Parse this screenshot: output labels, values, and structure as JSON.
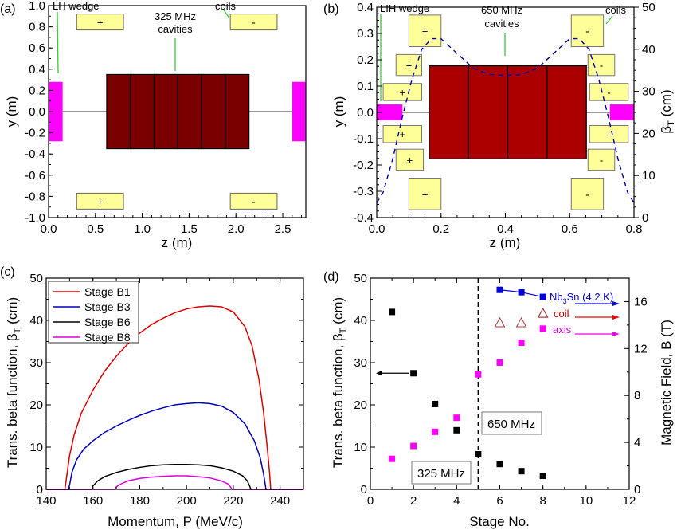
{
  "chart_data": [
    {
      "id": "a",
      "type": "diagram",
      "panel_label": "(a)",
      "xlabel": "z (m)",
      "ylabel": "y (m)",
      "xlim": [
        0,
        2.75
      ],
      "ylim": [
        -1.0,
        1.0
      ],
      "xticks": [
        "0.0",
        "0.5",
        "1.0",
        "1.5",
        "2.0",
        "2.5"
      ],
      "yticks": [
        "1.0",
        "0.8",
        "0.6",
        "0.4",
        "0.2",
        "0.0",
        "-0.2",
        "-0.4",
        "-0.6",
        "-0.8",
        "-1.0"
      ],
      "xtick_values": [
        0,
        0.5,
        1.0,
        1.5,
        2.0,
        2.5
      ],
      "ytick_values": [
        1.0,
        0.8,
        0.6,
        0.4,
        0.2,
        0.0,
        -0.2,
        -0.4,
        -0.6,
        -0.8,
        -1.0
      ],
      "annotations": {
        "wedge": "LH wedge",
        "cavity_line1": "325 MHz",
        "cavity_line2": "cavities",
        "coils": "coils"
      },
      "wedges": [
        {
          "z0": 0.0,
          "z1": 0.15,
          "y0": -0.28,
          "y1": 0.28
        },
        {
          "z0": 2.6,
          "z1": 2.75,
          "y0": -0.28,
          "y1": 0.28
        }
      ],
      "cavities": {
        "z0": 0.62,
        "z1": 2.14,
        "y0": -0.35,
        "y1": 0.35,
        "count": 6
      },
      "coils": [
        {
          "z0": 0.3,
          "z1": 0.8,
          "y0": 0.77,
          "y1": 0.92,
          "sign": "+"
        },
        {
          "z0": 1.94,
          "z1": 2.44,
          "y0": 0.77,
          "y1": 0.92,
          "sign": "-"
        },
        {
          "z0": 0.3,
          "z1": 0.8,
          "y0": -0.92,
          "y1": -0.77,
          "sign": "+"
        },
        {
          "z0": 1.94,
          "z1": 2.44,
          "y0": -0.92,
          "y1": -0.77,
          "sign": "-"
        }
      ],
      "colors": {
        "wedge": "#ff00ff",
        "cavity": "#7a0000",
        "coil": "#ffff99",
        "pointer": "#33cc33"
      }
    },
    {
      "id": "b",
      "type": "diagram+line",
      "panel_label": "(b)",
      "xlabel": "z (m)",
      "ylabel": "y (m)",
      "y2label": "β_T (cm)",
      "xlim": [
        0,
        0.8
      ],
      "ylim": [
        -0.4,
        0.4
      ],
      "y2lim": [
        0,
        50
      ],
      "xticks": [
        "0.0",
        "0.2",
        "0.4",
        "0.6",
        "0.8"
      ],
      "xtick_values": [
        0,
        0.2,
        0.4,
        0.6,
        0.8
      ],
      "yticks": [
        "0.4",
        "0.3",
        "0.2",
        "0.1",
        "0.0",
        "-0.1",
        "-0.2",
        "-0.3",
        "-0.4"
      ],
      "ytick_values": [
        0.4,
        0.3,
        0.2,
        0.1,
        0.0,
        -0.1,
        -0.2,
        -0.3,
        -0.4
      ],
      "y2ticks": [
        "50",
        "40",
        "30",
        "20",
        "10",
        "0"
      ],
      "y2tick_values": [
        50,
        40,
        30,
        20,
        10,
        0
      ],
      "annotations": {
        "wedge": "LIH wedge",
        "cavity_line1": "650 MHz",
        "cavity_line2": "cavities",
        "coils": "coils"
      },
      "wedges": [
        {
          "z0": 0.0,
          "z1": 0.08,
          "y0": -0.03,
          "y1": 0.03
        },
        {
          "z0": 0.725,
          "z1": 0.8,
          "y0": -0.03,
          "y1": 0.03
        }
      ],
      "cavities": {
        "z0": 0.163,
        "z1": 0.652,
        "y0": -0.177,
        "y1": 0.177,
        "count": 4
      },
      "coils": [
        {
          "z0": 0.1,
          "z1": 0.2,
          "y0": 0.25,
          "y1": 0.37,
          "sign": "+"
        },
        {
          "z0": 0.06,
          "z1": 0.14,
          "y0": 0.14,
          "y1": 0.22,
          "sign": "+"
        },
        {
          "z0": 0.02,
          "z1": 0.14,
          "y0": 0.045,
          "y1": 0.11,
          "sign": "+"
        },
        {
          "z0": 0.02,
          "z1": 0.14,
          "y0": -0.115,
          "y1": -0.05,
          "sign": "+"
        },
        {
          "z0": 0.06,
          "z1": 0.145,
          "y0": -0.22,
          "y1": -0.14,
          "sign": "+"
        },
        {
          "z0": 0.1,
          "z1": 0.2,
          "y0": -0.37,
          "y1": -0.25,
          "sign": "+"
        },
        {
          "z0": 0.605,
          "z1": 0.705,
          "y0": 0.25,
          "y1": 0.37,
          "sign": "-"
        },
        {
          "z0": 0.657,
          "z1": 0.74,
          "y0": 0.14,
          "y1": 0.22,
          "sign": "-"
        },
        {
          "z0": 0.662,
          "z1": 0.782,
          "y0": 0.045,
          "y1": 0.11,
          "sign": "-"
        },
        {
          "z0": 0.662,
          "z1": 0.782,
          "y0": -0.115,
          "y1": -0.05,
          "sign": "-"
        },
        {
          "z0": 0.657,
          "z1": 0.74,
          "y0": -0.22,
          "y1": -0.14,
          "sign": "-"
        },
        {
          "z0": 0.605,
          "z1": 0.705,
          "y0": -0.37,
          "y1": -0.25,
          "sign": "-"
        }
      ],
      "beta_curve": {
        "name": "β_T",
        "style": "dashed",
        "color": "#0000aa",
        "z": [
          0.0,
          0.02,
          0.05,
          0.08,
          0.11,
          0.14,
          0.17,
          0.2,
          0.25,
          0.3,
          0.35,
          0.4,
          0.45,
          0.5,
          0.55,
          0.6,
          0.63,
          0.66,
          0.69,
          0.72,
          0.75,
          0.78,
          0.8
        ],
        "beta": [
          3.5,
          6,
          14,
          24,
          33,
          40,
          42.5,
          42.5,
          39,
          35.5,
          34,
          33.8,
          34,
          35.5,
          39,
          42.5,
          42.5,
          40,
          33,
          24,
          14,
          6,
          3.5
        ]
      },
      "colors": {
        "wedge": "#ff00ff",
        "cavity": "#aa0000",
        "coil": "#ffff99",
        "pointer": "#33cc33"
      }
    },
    {
      "id": "c",
      "type": "line",
      "panel_label": "(c)",
      "xlabel": "Momentum, P (MeV/c)",
      "ylabel": "Trans. beta function, β_T (cm)",
      "xlim": [
        140,
        250
      ],
      "ylim": [
        0,
        50
      ],
      "xticks": [
        "140",
        "160",
        "180",
        "200",
        "220",
        "240"
      ],
      "xtick_values": [
        140,
        160,
        180,
        200,
        220,
        240
      ],
      "yticks": [
        "0",
        "10",
        "20",
        "30",
        "40",
        "50"
      ],
      "ytick_values": [
        0,
        10,
        20,
        30,
        40,
        50
      ],
      "legend_position": "top-left",
      "series": [
        {
          "name": "Stage B1",
          "color": "#dd0000",
          "x": [
            140,
            148,
            148.5,
            150,
            152,
            155,
            160,
            165,
            170,
            175,
            180,
            185,
            190,
            195,
            200,
            205,
            210,
            215,
            220,
            225,
            228,
            231,
            233,
            234.5,
            235.5,
            236,
            236.2,
            250
          ],
          "y": [
            0,
            0,
            2,
            8,
            13,
            18,
            23.5,
            28,
            31.5,
            34.5,
            37,
            39,
            40.5,
            41.8,
            42.7,
            43.2,
            43.4,
            43.2,
            42,
            38.5,
            34,
            26,
            18,
            10,
            4,
            0,
            0,
            0
          ]
        },
        {
          "name": "Stage B3",
          "color": "#0000bb",
          "x": [
            140,
            149.5,
            150,
            151,
            153,
            156,
            160,
            165,
            170,
            175,
            180,
            185,
            190,
            195,
            200,
            205,
            210,
            215,
            220,
            225,
            229,
            231.5,
            233,
            233.7,
            234,
            250
          ],
          "y": [
            0,
            0,
            1,
            4,
            7,
            9.5,
            11.5,
            13.5,
            15,
            16.3,
            17.5,
            18.5,
            19.3,
            20,
            20.3,
            20.5,
            20.3,
            19.7,
            18.2,
            15.5,
            11.5,
            7.5,
            3.5,
            1,
            0,
            0
          ]
        },
        {
          "name": "Stage B6",
          "color": "#000000",
          "x": [
            140,
            159.5,
            160,
            162,
            165,
            170,
            175,
            180,
            185,
            190,
            195,
            200,
            205,
            210,
            215,
            220,
            224,
            226,
            227,
            227.5,
            250
          ],
          "y": [
            0,
            0,
            0.8,
            2,
            3,
            4,
            4.7,
            5.2,
            5.6,
            5.8,
            5.9,
            5.9,
            5.8,
            5.6,
            5.1,
            4.3,
            3.2,
            2,
            0.8,
            0,
            0
          ]
        },
        {
          "name": "Stage B8",
          "color": "#dd00dd",
          "x": [
            140,
            169.5,
            170,
            172,
            175,
            180,
            185,
            190,
            195,
            200,
            205,
            210,
            215,
            218,
            219.5,
            250
          ],
          "y": [
            0,
            0,
            0.6,
            1.3,
            2,
            2.6,
            2.9,
            3.1,
            3.2,
            3.2,
            3.0,
            2.7,
            2.0,
            1.2,
            0,
            0
          ]
        }
      ]
    },
    {
      "id": "d",
      "type": "scatter",
      "panel_label": "(d)",
      "xlabel": "Stage No.",
      "ylabel": "Trans. beta function, β_T (cm)",
      "y2label": "Magnetic Field, B (T)",
      "xlim": [
        0,
        12
      ],
      "ylim": [
        0,
        50
      ],
      "y2lim": [
        0,
        18
      ],
      "xticks": [
        "0",
        "2",
        "4",
        "6",
        "8",
        "10",
        "12"
      ],
      "xtick_values": [
        0,
        2,
        4,
        6,
        8,
        10,
        12
      ],
      "yticks": [
        "0",
        "10",
        "20",
        "30",
        "40",
        "50"
      ],
      "ytick_values": [
        0,
        10,
        20,
        30,
        40,
        50
      ],
      "y2ticks": [
        "0",
        "4",
        "8",
        "12",
        "16"
      ],
      "y2tick_values": [
        0,
        4,
        8,
        12,
        16
      ],
      "divider_x": 5,
      "region_labels": {
        "left": "325 MHz",
        "right": "650 MHz"
      },
      "series": [
        {
          "name": "β_T",
          "axis": "left",
          "marker": "square",
          "color": "#000000",
          "x": [
            1,
            2,
            3,
            4,
            5,
            6,
            7,
            8
          ],
          "y": [
            42,
            27.5,
            20.2,
            14,
            8.3,
            6,
            4.3,
            3.2
          ]
        },
        {
          "name": "axis",
          "axis": "right",
          "marker": "square",
          "color": "#ff00ff",
          "x": [
            1,
            2,
            3,
            4,
            5,
            6,
            7,
            8
          ],
          "y": [
            2.6,
            3.7,
            4.9,
            6.1,
            9.8,
            10.8,
            12.5,
            13.7
          ]
        },
        {
          "name": "coil",
          "axis": "right",
          "marker": "triangle",
          "color": "#aa3333",
          "x": [
            6,
            7,
            8
          ],
          "y": [
            14.2,
            14.2,
            15.0
          ]
        },
        {
          "name": "Nb3Sn (4.2 K)",
          "axis": "right",
          "marker": "square-line",
          "color": "#0000dd",
          "x": [
            6,
            7,
            8
          ],
          "y": [
            17.0,
            16.8,
            16.4
          ]
        }
      ],
      "legend": {
        "nb3sn_prefix": "Nb",
        "nb3sn_sub": "3",
        "nb3sn_suffix": "Sn (4.2 K)",
        "coil": "coil",
        "axis": "axis"
      }
    }
  ]
}
